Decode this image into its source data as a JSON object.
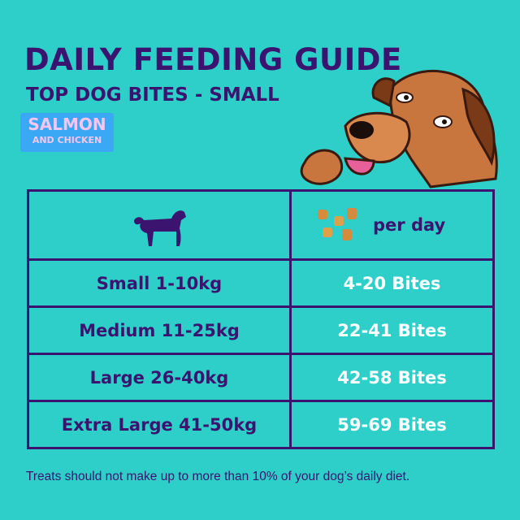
{
  "header": {
    "title": "DAILY FEEDING GUIDE",
    "subtitle": "TOP DOG BITES - SMALL",
    "badge_line1": "SALMON",
    "badge_line2": "AND CHICKEN"
  },
  "table": {
    "header_right": "per day",
    "rows": [
      {
        "size": "Small 1-10kg",
        "amount": "4-20 Bites"
      },
      {
        "size": "Medium 11-25kg",
        "amount": "22-41 Bites"
      },
      {
        "size": "Large 26-40kg",
        "amount": "42-58 Bites"
      },
      {
        "size": "Extra Large 41-50kg",
        "amount": "59-69 Bites"
      }
    ]
  },
  "footer": "Treats should not make up to more than 10% of your dog’s daily diet.",
  "colors": {
    "background": "#2dcfc8",
    "ink": "#3b1470",
    "badge": "#3ba8f5",
    "badge_text": "#f6c6f0"
  },
  "icons": [
    "dog-illustration-icon",
    "dog-silhouette-icon",
    "dog-bites-icon"
  ]
}
